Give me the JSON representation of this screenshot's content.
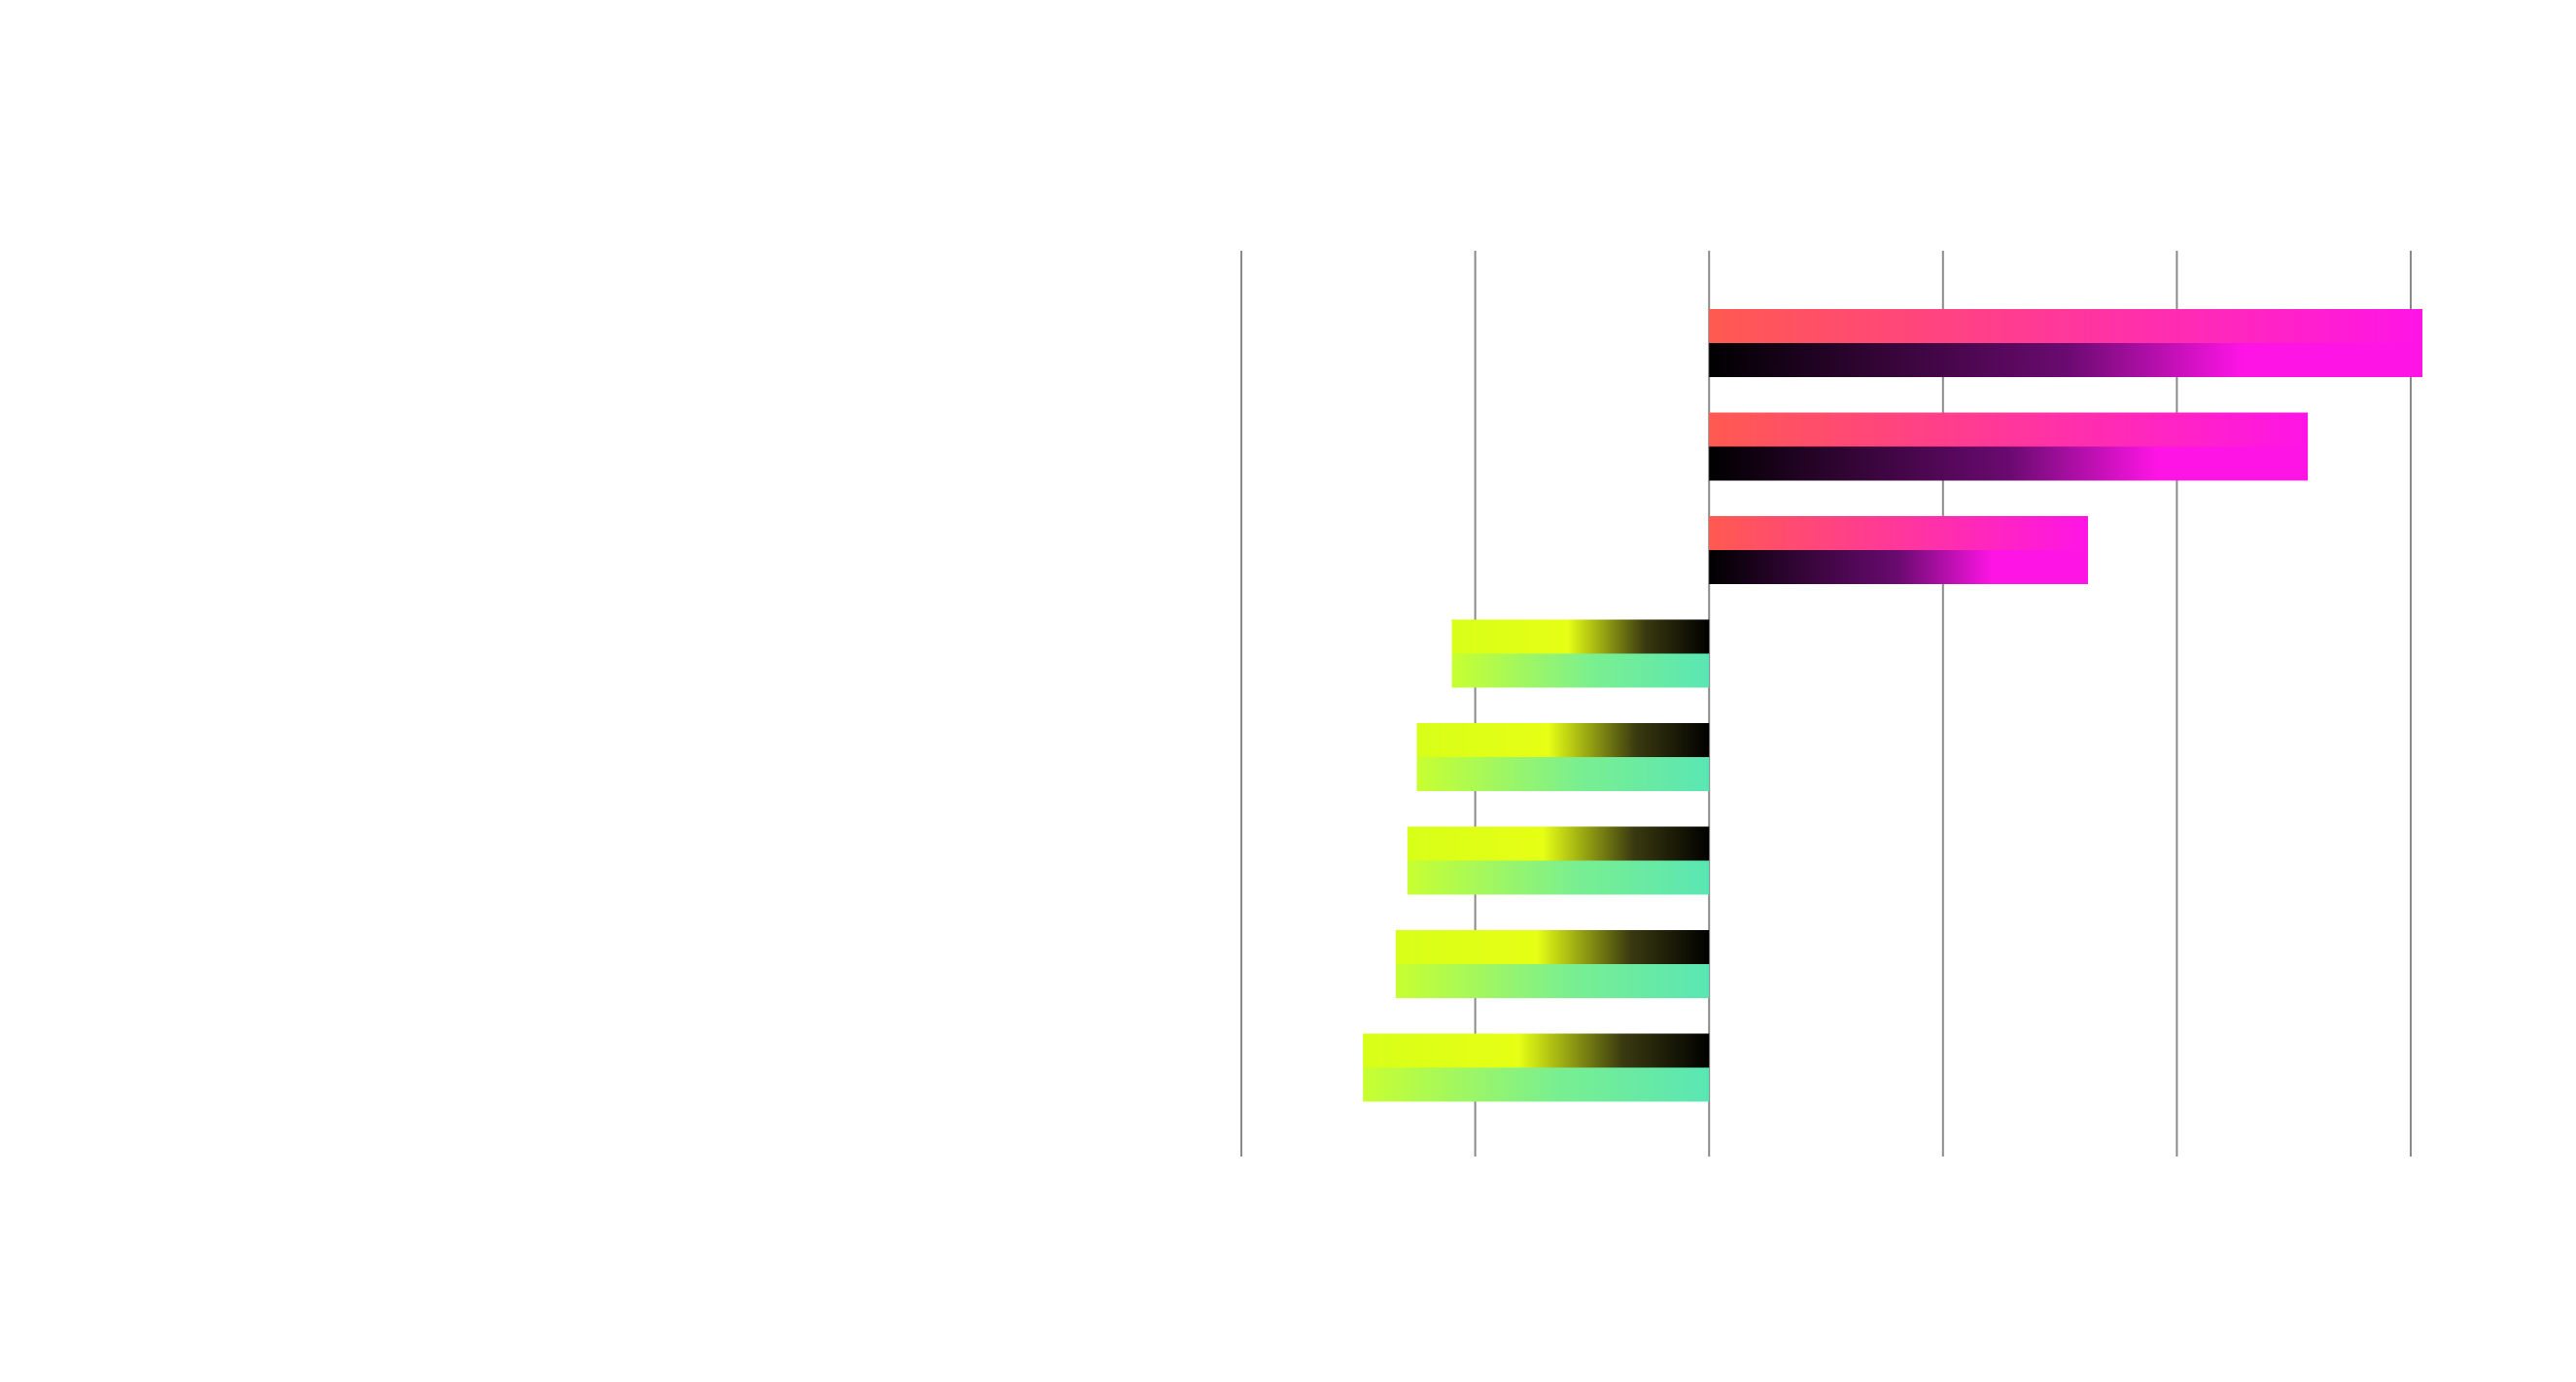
{
  "chart_data": {
    "type": "bar",
    "orientation": "horizontal",
    "title": "",
    "xlabel": "",
    "ylabel": "",
    "categories": [
      "",
      "",
      "",
      "",
      "",
      "",
      "",
      ""
    ],
    "values": [
      3.05,
      2.56,
      1.62,
      -1.1,
      -1.25,
      -1.29,
      -1.34,
      -1.48
    ],
    "xlim": [
      -2,
      3
    ],
    "grid": true,
    "legend": "none",
    "colors": {
      "positive_top": [
        "#ff5a50",
        "#ff14e6"
      ],
      "positive_shade": [
        "#000000",
        "#ff14e6"
      ],
      "negative_top": [
        "#e6ff14",
        "#5ae6b4"
      ],
      "negative_shade": [
        "#000000",
        "#e6ff14"
      ],
      "gridline": "#8a8a8a"
    }
  }
}
